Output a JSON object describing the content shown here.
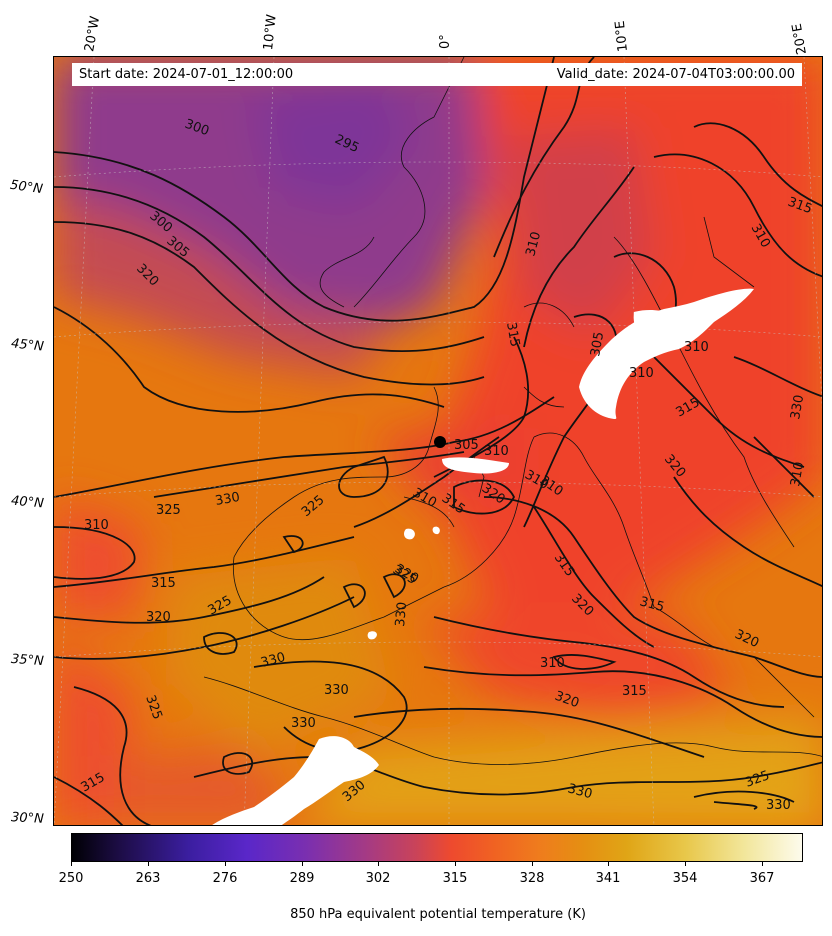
{
  "map": {
    "info": {
      "start_date": "Start date: 2024-07-01_12:00:00",
      "valid_date": "Valid_date: 2024-07-04T03:00:00.00"
    },
    "lon_labels": [
      "20°W",
      "10°W",
      "0°",
      "10°E",
      "20°E"
    ],
    "lat_labels": [
      "50°N",
      "45°N",
      "40°N",
      "35°N",
      "30°N"
    ],
    "contour_labels": [
      "300",
      "295",
      "300",
      "305",
      "320",
      "310",
      "305",
      "310",
      "315",
      "315",
      "310",
      "310",
      "315",
      "320",
      "310",
      "305",
      "310",
      "310",
      "315",
      "320",
      "325",
      "330",
      "310",
      "325",
      "315",
      "320",
      "325",
      "320",
      "330",
      "330",
      "310",
      "315",
      "320",
      "310",
      "325",
      "330",
      "320",
      "330",
      "315",
      "325",
      "320",
      "315",
      "330",
      "330",
      "325",
      "330",
      "330",
      "310",
      "315"
    ],
    "colors": {
      "low": "#8e3a8a",
      "mid": "#ef4a2b",
      "high": "#e07a10",
      "warm": "#e3a214",
      "contour": "#111111",
      "missing": "#ffffff"
    }
  },
  "colorbar": {
    "ticks": [
      "250",
      "263",
      "276",
      "289",
      "302",
      "315",
      "328",
      "341",
      "354",
      "367"
    ],
    "title": "850 hPa equivalent potential temperature (K)"
  }
}
